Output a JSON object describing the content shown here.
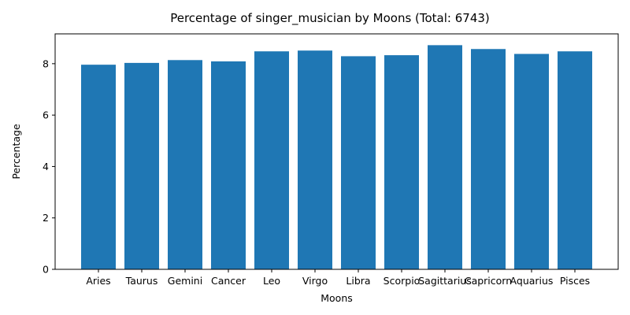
{
  "chart_data": {
    "type": "bar",
    "title": "Percentage of singer_musician by Moons (Total: 6743)",
    "xlabel": "Moons",
    "ylabel": "Percentage",
    "categories": [
      "Aries",
      "Taurus",
      "Gemini",
      "Cancer",
      "Leo",
      "Virgo",
      "Libra",
      "Scorpio",
      "Sagittarius",
      "Capricorn",
      "Aquarius",
      "Pisces"
    ],
    "values": [
      7.96,
      8.03,
      8.14,
      8.09,
      8.48,
      8.51,
      8.29,
      8.33,
      8.72,
      8.57,
      8.38,
      8.48
    ],
    "ylim": [
      0,
      9.16
    ],
    "yticks": [
      0,
      2,
      4,
      6,
      8
    ],
    "bar_color": "#1f77b4",
    "grid": false,
    "legend": "none"
  }
}
